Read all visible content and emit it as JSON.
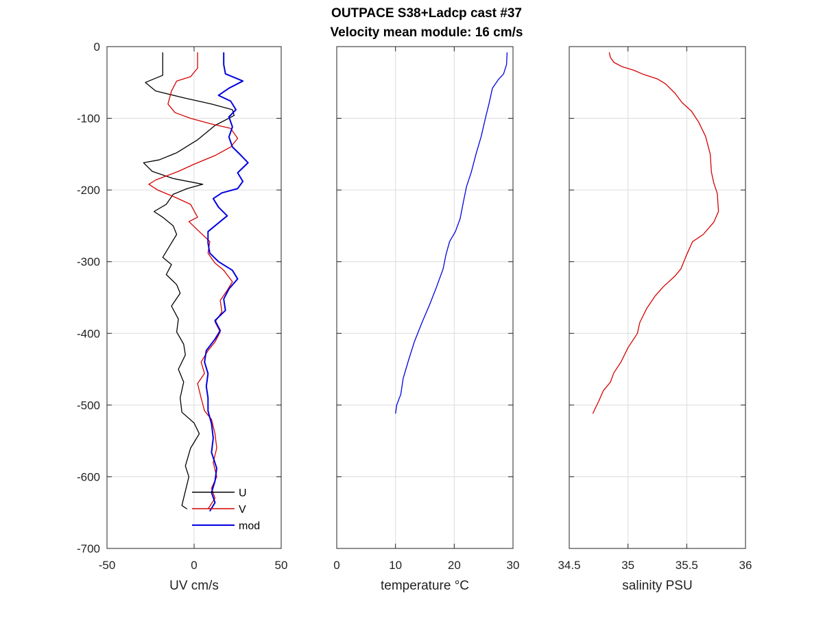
{
  "figure": {
    "title_line1": "OUTPACE S38+Ladcp cast #37",
    "title_line2": "Velocity mean module:  16 cm/s"
  },
  "chart_data": [
    {
      "type": "line",
      "xlabel": "UV cm/s",
      "ylabel": "",
      "xlim": [
        -50,
        50
      ],
      "ylim": [
        -700,
        0
      ],
      "xticks": [
        -50,
        0,
        50
      ],
      "xtick_labels": [
        "-50",
        "0",
        "50"
      ],
      "yticks": [
        0,
        -100,
        -200,
        -300,
        -400,
        -500,
        -600,
        -700
      ],
      "ytick_labels": [
        "0",
        "-100",
        "-200",
        "-300",
        "-400",
        "-500",
        "-600",
        "-700"
      ],
      "grid": true,
      "legend_position": "bottom-right",
      "series": [
        {
          "name": "U",
          "color": "#000000",
          "points": [
            [
              -18,
              -8
            ],
            [
              -18,
              -40
            ],
            [
              -28,
              -50
            ],
            [
              -22,
              -62
            ],
            [
              -5,
              -72
            ],
            [
              10,
              -80
            ],
            [
              22,
              -88
            ],
            [
              23,
              -96
            ],
            [
              12,
              -110
            ],
            [
              2,
              -130
            ],
            [
              -10,
              -148
            ],
            [
              -20,
              -158
            ],
            [
              -29,
              -162
            ],
            [
              -24,
              -174
            ],
            [
              -12,
              -184
            ],
            [
              5,
              -192
            ],
            [
              -4,
              -198
            ],
            [
              -12,
              -206
            ],
            [
              -16,
              -220
            ],
            [
              -23,
              -230
            ],
            [
              -18,
              -238
            ],
            [
              -12,
              -250
            ],
            [
              -10,
              -262
            ],
            [
              -14,
              -278
            ],
            [
              -18,
              -294
            ],
            [
              -13,
              -304
            ],
            [
              -16,
              -318
            ],
            [
              -10,
              -332
            ],
            [
              -8,
              -344
            ],
            [
              -13,
              -362
            ],
            [
              -9,
              -380
            ],
            [
              -10,
              -398
            ],
            [
              -6,
              -415
            ],
            [
              -5,
              -430
            ],
            [
              -9,
              -450
            ],
            [
              -6,
              -468
            ],
            [
              -8,
              -490
            ],
            [
              -7,
              -510
            ],
            [
              0,
              -525
            ],
            [
              3,
              -540
            ],
            [
              -2,
              -560
            ],
            [
              -5,
              -585
            ],
            [
              -3,
              -600
            ],
            [
              -5,
              -620
            ],
            [
              -7,
              -640
            ],
            [
              -4,
              -645
            ]
          ]
        },
        {
          "name": "V",
          "color": "#d40000",
          "points": [
            [
              2,
              -8
            ],
            [
              2,
              -30
            ],
            [
              -2,
              -42
            ],
            [
              -10,
              -48
            ],
            [
              -13,
              -62
            ],
            [
              -15,
              -80
            ],
            [
              -11,
              -92
            ],
            [
              -2,
              -100
            ],
            [
              10,
              -108
            ],
            [
              21,
              -114
            ],
            [
              25,
              -128
            ],
            [
              21,
              -140
            ],
            [
              12,
              -152
            ],
            [
              0,
              -164
            ],
            [
              -9,
              -174
            ],
            [
              -22,
              -186
            ],
            [
              -26,
              -192
            ],
            [
              -21,
              -200
            ],
            [
              -11,
              -210
            ],
            [
              -2,
              -220
            ],
            [
              2,
              -238
            ],
            [
              -3,
              -244
            ],
            [
              3,
              -258
            ],
            [
              9,
              -272
            ],
            [
              8,
              -288
            ],
            [
              12,
              -302
            ],
            [
              17,
              -312
            ],
            [
              22,
              -328
            ],
            [
              19,
              -340
            ],
            [
              15,
              -354
            ],
            [
              16,
              -370
            ],
            [
              12,
              -384
            ],
            [
              15,
              -398
            ],
            [
              12,
              -412
            ],
            [
              8,
              -424
            ],
            [
              4,
              -440
            ],
            [
              6,
              -456
            ],
            [
              2,
              -470
            ],
            [
              4,
              -490
            ],
            [
              6,
              -508
            ],
            [
              10,
              -520
            ],
            [
              12,
              -540
            ],
            [
              13,
              -560
            ],
            [
              11,
              -580
            ],
            [
              13,
              -600
            ],
            [
              10,
              -616
            ],
            [
              12,
              -630
            ],
            [
              8,
              -645
            ]
          ]
        },
        {
          "name": "mod",
          "color": "#0000e0",
          "points": [
            [
              17,
              -8
            ],
            [
              17,
              -25
            ],
            [
              18,
              -38
            ],
            [
              28,
              -48
            ],
            [
              20,
              -58
            ],
            [
              14,
              -68
            ],
            [
              21,
              -76
            ],
            [
              24,
              -88
            ],
            [
              20,
              -98
            ],
            [
              22,
              -112
            ],
            [
              20,
              -126
            ],
            [
              22,
              -140
            ],
            [
              27,
              -152
            ],
            [
              31,
              -162
            ],
            [
              25,
              -176
            ],
            [
              28,
              -188
            ],
            [
              25,
              -198
            ],
            [
              16,
              -204
            ],
            [
              11,
              -212
            ],
            [
              14,
              -224
            ],
            [
              19,
              -236
            ],
            [
              14,
              -246
            ],
            [
              8,
              -258
            ],
            [
              8,
              -274
            ],
            [
              9,
              -288
            ],
            [
              14,
              -300
            ],
            [
              22,
              -312
            ],
            [
              25,
              -324
            ],
            [
              20,
              -338
            ],
            [
              17,
              -352
            ],
            [
              18,
              -368
            ],
            [
              12,
              -382
            ],
            [
              15,
              -396
            ],
            [
              12,
              -408
            ],
            [
              7,
              -424
            ],
            [
              6,
              -440
            ],
            [
              8,
              -456
            ],
            [
              7,
              -474
            ],
            [
              8,
              -490
            ],
            [
              8,
              -508
            ],
            [
              10,
              -526
            ],
            [
              11,
              -546
            ],
            [
              10,
              -566
            ],
            [
              13,
              -588
            ],
            [
              12,
              -606
            ],
            [
              10,
              -622
            ],
            [
              12,
              -636
            ],
            [
              9,
              -648
            ]
          ]
        }
      ]
    },
    {
      "type": "line",
      "xlabel": "temperature °C",
      "ylabel": "",
      "xlim": [
        0,
        30
      ],
      "ylim": [
        -700,
        0
      ],
      "xticks": [
        0,
        10,
        20,
        30
      ],
      "xtick_labels": [
        "0",
        "10",
        "20",
        "30"
      ],
      "yticks": [
        0,
        -100,
        -200,
        -300,
        -400,
        -500,
        -600,
        -700
      ],
      "grid": true,
      "series": [
        {
          "color": "#0000e0",
          "points": [
            [
              29,
              -8
            ],
            [
              28.9,
              -25
            ],
            [
              28.4,
              -38
            ],
            [
              27.5,
              -46
            ],
            [
              26.5,
              -58
            ],
            [
              25.9,
              -80
            ],
            [
              25.3,
              -100
            ],
            [
              24.6,
              -125
            ],
            [
              23.7,
              -150
            ],
            [
              22.9,
              -175
            ],
            [
              22.1,
              -195
            ],
            [
              21.6,
              -215
            ],
            [
              21.0,
              -240
            ],
            [
              20.2,
              -258
            ],
            [
              19.2,
              -272
            ],
            [
              18.6,
              -290
            ],
            [
              18.1,
              -310
            ],
            [
              17.0,
              -335
            ],
            [
              15.8,
              -360
            ],
            [
              14.5,
              -385
            ],
            [
              13.2,
              -412
            ],
            [
              12.2,
              -438
            ],
            [
              11.3,
              -463
            ],
            [
              10.9,
              -485
            ],
            [
              10.2,
              -500
            ],
            [
              10.0,
              -512
            ]
          ]
        }
      ]
    },
    {
      "type": "line",
      "xlabel": "salinity PSU",
      "ylabel": "",
      "xlim": [
        34.5,
        36
      ],
      "ylim": [
        -700,
        0
      ],
      "xticks": [
        34.5,
        35,
        35.5,
        36
      ],
      "xtick_labels": [
        "34.5",
        "35",
        "35.5",
        "36"
      ],
      "yticks": [
        0,
        -100,
        -200,
        -300,
        -400,
        -500,
        -600,
        -700
      ],
      "grid": true,
      "series": [
        {
          "color": "#d40000",
          "points": [
            [
              34.84,
              -8
            ],
            [
              34.85,
              -15
            ],
            [
              34.88,
              -22
            ],
            [
              34.95,
              -28
            ],
            [
              35.05,
              -33
            ],
            [
              35.12,
              -38
            ],
            [
              35.25,
              -45
            ],
            [
              35.32,
              -52
            ],
            [
              35.4,
              -65
            ],
            [
              35.46,
              -78
            ],
            [
              35.54,
              -90
            ],
            [
              35.6,
              -105
            ],
            [
              35.66,
              -125
            ],
            [
              35.7,
              -150
            ],
            [
              35.71,
              -175
            ],
            [
              35.73,
              -190
            ],
            [
              35.76,
              -205
            ],
            [
              35.77,
              -230
            ],
            [
              35.73,
              -245
            ],
            [
              35.64,
              -262
            ],
            [
              35.55,
              -272
            ],
            [
              35.5,
              -290
            ],
            [
              35.45,
              -310
            ],
            [
              35.4,
              -320
            ],
            [
              35.3,
              -335
            ],
            [
              35.23,
              -348
            ],
            [
              35.16,
              -365
            ],
            [
              35.1,
              -385
            ],
            [
              35.08,
              -400
            ],
            [
              35.0,
              -420
            ],
            [
              34.94,
              -440
            ],
            [
              34.88,
              -455
            ],
            [
              34.85,
              -468
            ],
            [
              34.79,
              -480
            ],
            [
              34.75,
              -495
            ],
            [
              34.72,
              -505
            ],
            [
              34.7,
              -512
            ]
          ]
        }
      ]
    }
  ]
}
